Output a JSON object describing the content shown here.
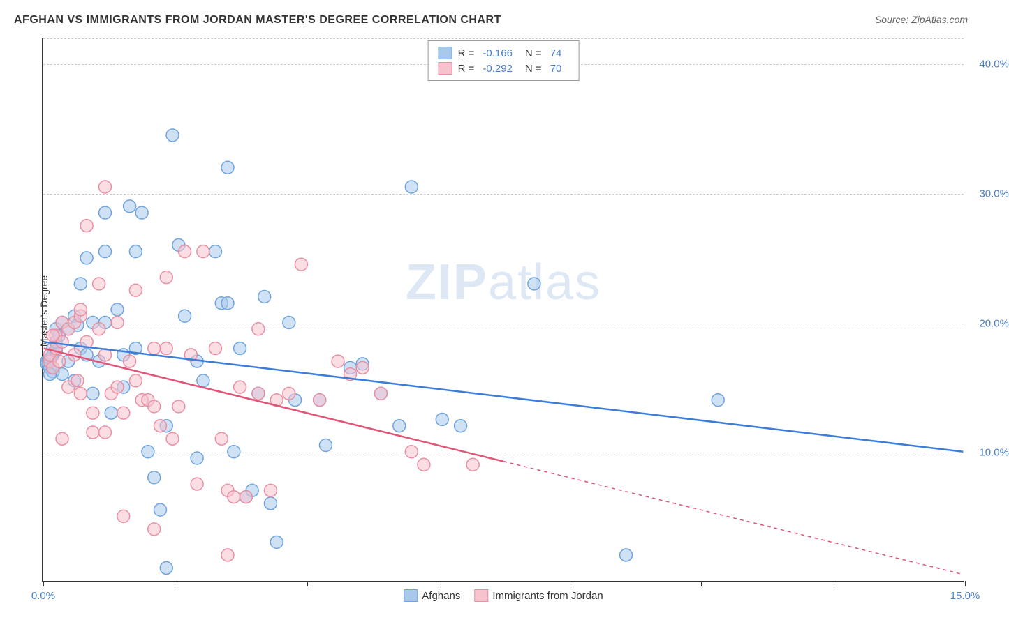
{
  "title": "AFGHAN VS IMMIGRANTS FROM JORDAN MASTER'S DEGREE CORRELATION CHART",
  "source": "Source: ZipAtlas.com",
  "watermark_part1": "ZIP",
  "watermark_part2": "atlas",
  "chart": {
    "type": "scatter",
    "y_label": "Master's Degree",
    "xlim": [
      0,
      15
    ],
    "ylim": [
      0,
      42
    ],
    "x_ticks": [
      0,
      2.14,
      4.29,
      6.43,
      8.57,
      10.71,
      12.86,
      15
    ],
    "x_tick_labels": {
      "0": "0.0%",
      "15": "15.0%"
    },
    "y_ticks": [
      10,
      20,
      30,
      40
    ],
    "y_tick_labels": {
      "10": "10.0%",
      "20": "20.0%",
      "30": "30.0%",
      "40": "40.0%"
    },
    "background_color": "#ffffff",
    "grid_color": "#cccccc",
    "axis_color": "#333333",
    "marker_radius": 9,
    "marker_opacity": 0.55,
    "series": [
      {
        "name": "Afghans",
        "color_fill": "#a8c8ec",
        "color_stroke": "#6fa3dc",
        "R": "-0.166",
        "N": "74",
        "trend": {
          "x1": 0,
          "y1": 18.5,
          "x2": 15,
          "y2": 10.0,
          "solid_until_x": 15,
          "color": "#3b7dd8",
          "width": 2.5
        },
        "points": [
          [
            0.05,
            17.0
          ],
          [
            0.05,
            16.8
          ],
          [
            0.1,
            17.2
          ],
          [
            0.1,
            16.5
          ],
          [
            0.15,
            18.0
          ],
          [
            0.15,
            17.5
          ],
          [
            0.2,
            19.5
          ],
          [
            0.2,
            17.8
          ],
          [
            0.15,
            16.2
          ],
          [
            0.2,
            18.5
          ],
          [
            0.25,
            19.0
          ],
          [
            0.3,
            16.0
          ],
          [
            0.3,
            20.0
          ],
          [
            0.4,
            17.0
          ],
          [
            0.5,
            20.5
          ],
          [
            0.55,
            19.8
          ],
          [
            0.6,
            18.0
          ],
          [
            0.6,
            23.0
          ],
          [
            0.7,
            25.0
          ],
          [
            0.7,
            17.5
          ],
          [
            0.8,
            14.5
          ],
          [
            0.8,
            20.0
          ],
          [
            0.9,
            17.0
          ],
          [
            1.0,
            25.5
          ],
          [
            1.0,
            28.5
          ],
          [
            1.1,
            13.0
          ],
          [
            1.2,
            21.0
          ],
          [
            1.3,
            17.5
          ],
          [
            1.3,
            15.0
          ],
          [
            1.4,
            29.0
          ],
          [
            1.5,
            18.0
          ],
          [
            1.6,
            28.5
          ],
          [
            1.7,
            10.0
          ],
          [
            1.8,
            8.0
          ],
          [
            1.9,
            5.5
          ],
          [
            2.0,
            12.0
          ],
          [
            2.0,
            1.0
          ],
          [
            2.1,
            34.5
          ],
          [
            2.2,
            26.0
          ],
          [
            2.3,
            20.5
          ],
          [
            2.5,
            9.5
          ],
          [
            2.6,
            15.5
          ],
          [
            2.8,
            25.5
          ],
          [
            2.9,
            21.5
          ],
          [
            3.0,
            32.0
          ],
          [
            3.1,
            10.0
          ],
          [
            3.2,
            18.0
          ],
          [
            3.3,
            6.5
          ],
          [
            3.4,
            7.0
          ],
          [
            3.5,
            14.5
          ],
          [
            3.6,
            22.0
          ],
          [
            3.7,
            6.0
          ],
          [
            3.8,
            3.0
          ],
          [
            4.0,
            20.0
          ],
          [
            4.1,
            14.0
          ],
          [
            4.5,
            14.0
          ],
          [
            4.6,
            10.5
          ],
          [
            5.0,
            16.5
          ],
          [
            5.2,
            16.8
          ],
          [
            5.5,
            14.5
          ],
          [
            5.8,
            12.0
          ],
          [
            6.0,
            30.5
          ],
          [
            6.5,
            12.5
          ],
          [
            6.8,
            12.0
          ],
          [
            8.0,
            23.0
          ],
          [
            9.5,
            2.0
          ],
          [
            11.0,
            14.0
          ],
          [
            0.1,
            16.0
          ],
          [
            0.5,
            15.5
          ],
          [
            1.0,
            20.0
          ],
          [
            1.5,
            25.5
          ],
          [
            2.5,
            17.0
          ],
          [
            3.0,
            21.5
          ],
          [
            0.4,
            19.5
          ]
        ]
      },
      {
        "name": "Immigrants from Jordan",
        "color_fill": "#f5c2cd",
        "color_stroke": "#e88fa3",
        "R": "-0.292",
        "N": "70",
        "trend": {
          "x1": 0,
          "y1": 18.0,
          "x2": 15,
          "y2": 0.5,
          "solid_until_x": 7.5,
          "color": "#e05577",
          "width": 2.5
        },
        "points": [
          [
            0.1,
            17.0
          ],
          [
            0.1,
            17.5
          ],
          [
            0.15,
            16.5
          ],
          [
            0.2,
            18.0
          ],
          [
            0.2,
            19.0
          ],
          [
            0.25,
            17.0
          ],
          [
            0.3,
            20.0
          ],
          [
            0.3,
            11.0
          ],
          [
            0.4,
            19.5
          ],
          [
            0.4,
            15.0
          ],
          [
            0.5,
            17.5
          ],
          [
            0.5,
            20.0
          ],
          [
            0.55,
            15.5
          ],
          [
            0.6,
            14.5
          ],
          [
            0.6,
            20.5
          ],
          [
            0.7,
            18.5
          ],
          [
            0.7,
            27.5
          ],
          [
            0.8,
            13.0
          ],
          [
            0.8,
            11.5
          ],
          [
            0.9,
            19.5
          ],
          [
            0.9,
            23.0
          ],
          [
            1.0,
            11.5
          ],
          [
            1.0,
            30.5
          ],
          [
            1.1,
            14.5
          ],
          [
            1.2,
            20.0
          ],
          [
            1.3,
            5.0
          ],
          [
            1.3,
            13.0
          ],
          [
            1.4,
            17.0
          ],
          [
            1.5,
            22.5
          ],
          [
            1.5,
            15.5
          ],
          [
            1.6,
            14.0
          ],
          [
            1.7,
            14.0
          ],
          [
            1.8,
            18.0
          ],
          [
            1.8,
            4.0
          ],
          [
            1.9,
            12.0
          ],
          [
            2.0,
            23.5
          ],
          [
            2.1,
            11.0
          ],
          [
            2.2,
            13.5
          ],
          [
            2.3,
            25.5
          ],
          [
            2.4,
            17.5
          ],
          [
            2.5,
            7.5
          ],
          [
            2.6,
            25.5
          ],
          [
            2.8,
            18.0
          ],
          [
            2.9,
            11.0
          ],
          [
            3.0,
            7.0
          ],
          [
            3.0,
            2.0
          ],
          [
            3.1,
            6.5
          ],
          [
            3.2,
            15.0
          ],
          [
            3.3,
            6.5
          ],
          [
            3.5,
            14.5
          ],
          [
            3.5,
            19.5
          ],
          [
            3.7,
            7.0
          ],
          [
            3.8,
            14.0
          ],
          [
            4.0,
            14.5
          ],
          [
            4.2,
            24.5
          ],
          [
            4.5,
            14.0
          ],
          [
            4.8,
            17.0
          ],
          [
            5.0,
            16.0
          ],
          [
            5.2,
            16.5
          ],
          [
            5.5,
            14.5
          ],
          [
            6.0,
            10.0
          ],
          [
            6.2,
            9.0
          ],
          [
            7.0,
            9.0
          ],
          [
            0.3,
            18.5
          ],
          [
            0.6,
            21.0
          ],
          [
            1.0,
            17.5
          ],
          [
            1.2,
            15.0
          ],
          [
            1.8,
            13.5
          ],
          [
            2.0,
            18.0
          ],
          [
            0.15,
            19.0
          ]
        ]
      }
    ],
    "legend_top": {
      "r_label": "R =",
      "n_label": "N ="
    },
    "legend_bottom": [
      {
        "label": "Afghans",
        "fill": "#a8c8ec",
        "stroke": "#6fa3dc"
      },
      {
        "label": "Immigrants from Jordan",
        "fill": "#f5c2cd",
        "stroke": "#e88fa3"
      }
    ]
  }
}
